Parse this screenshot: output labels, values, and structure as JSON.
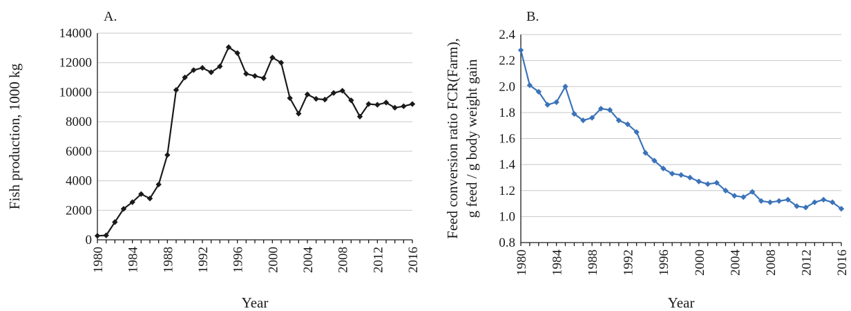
{
  "chart_data": [
    {
      "type": "line",
      "panel_label": "A.",
      "xlabel": "Year",
      "ylabel": "Fish production, 1000 kg",
      "xlim": [
        1980,
        2016
      ],
      "ylim": [
        0,
        14000
      ],
      "x_ticks": [
        "1980",
        "1984",
        "1988",
        "1992",
        "1996",
        "2000",
        "2004",
        "2008",
        "2012",
        "2016"
      ],
      "y_ticks": [
        "0",
        "2000",
        "4000",
        "6000",
        "8000",
        "10000",
        "12000",
        "14000"
      ],
      "grid": true,
      "color": "#1a1a1a",
      "marker": "diamond",
      "x": [
        1980,
        1981,
        1982,
        1983,
        1984,
        1985,
        1986,
        1987,
        1988,
        1989,
        1990,
        1991,
        1992,
        1993,
        1994,
        1995,
        1996,
        1997,
        1998,
        1999,
        2000,
        2001,
        2002,
        2003,
        2004,
        2005,
        2006,
        2007,
        2008,
        2009,
        2010,
        2011,
        2012,
        2013,
        2014,
        2015,
        2016
      ],
      "y": [
        270,
        300,
        1200,
        2100,
        2550,
        3100,
        2800,
        3750,
        5750,
        10150,
        11000,
        11500,
        11650,
        11350,
        11750,
        13050,
        12650,
        11250,
        11100,
        10950,
        12350,
        12000,
        9600,
        8550,
        9850,
        9550,
        9500,
        9950,
        10100,
        9450,
        8350,
        9200,
        9150,
        9300,
        8950,
        9050,
        9200
      ]
    },
    {
      "type": "line",
      "panel_label": "B.",
      "xlabel": "Year",
      "ylabel": [
        "Feed conversion ratio FCR(Farm),",
        "g feed / g body weight gain"
      ],
      "xlim": [
        1980,
        2016
      ],
      "ylim": [
        0.8,
        2.4
      ],
      "x_ticks": [
        "1980",
        "1984",
        "1988",
        "1992",
        "1996",
        "2000",
        "2004",
        "2008",
        "2012",
        "2016"
      ],
      "y_ticks": [
        "0.8",
        "1.0",
        "1.2",
        "1.4",
        "1.6",
        "1.8",
        "2.0",
        "2.2",
        "2.4"
      ],
      "grid": true,
      "color": "#3b73b9",
      "marker": "diamond",
      "x": [
        1980,
        1981,
        1982,
        1983,
        1984,
        1985,
        1986,
        1987,
        1988,
        1989,
        1990,
        1991,
        1992,
        1993,
        1994,
        1995,
        1996,
        1997,
        1998,
        1999,
        2000,
        2001,
        2002,
        2003,
        2004,
        2005,
        2006,
        2007,
        2008,
        2009,
        2010,
        2011,
        2012,
        2013,
        2014,
        2015,
        2016
      ],
      "y": [
        2.28,
        2.01,
        1.96,
        1.86,
        1.88,
        2.0,
        1.79,
        1.74,
        1.76,
        1.83,
        1.82,
        1.74,
        1.71,
        1.65,
        1.49,
        1.43,
        1.37,
        1.33,
        1.32,
        1.3,
        1.27,
        1.25,
        1.26,
        1.2,
        1.16,
        1.15,
        1.19,
        1.12,
        1.11,
        1.12,
        1.13,
        1.08,
        1.07,
        1.11,
        1.13,
        1.11,
        1.06
      ]
    }
  ]
}
